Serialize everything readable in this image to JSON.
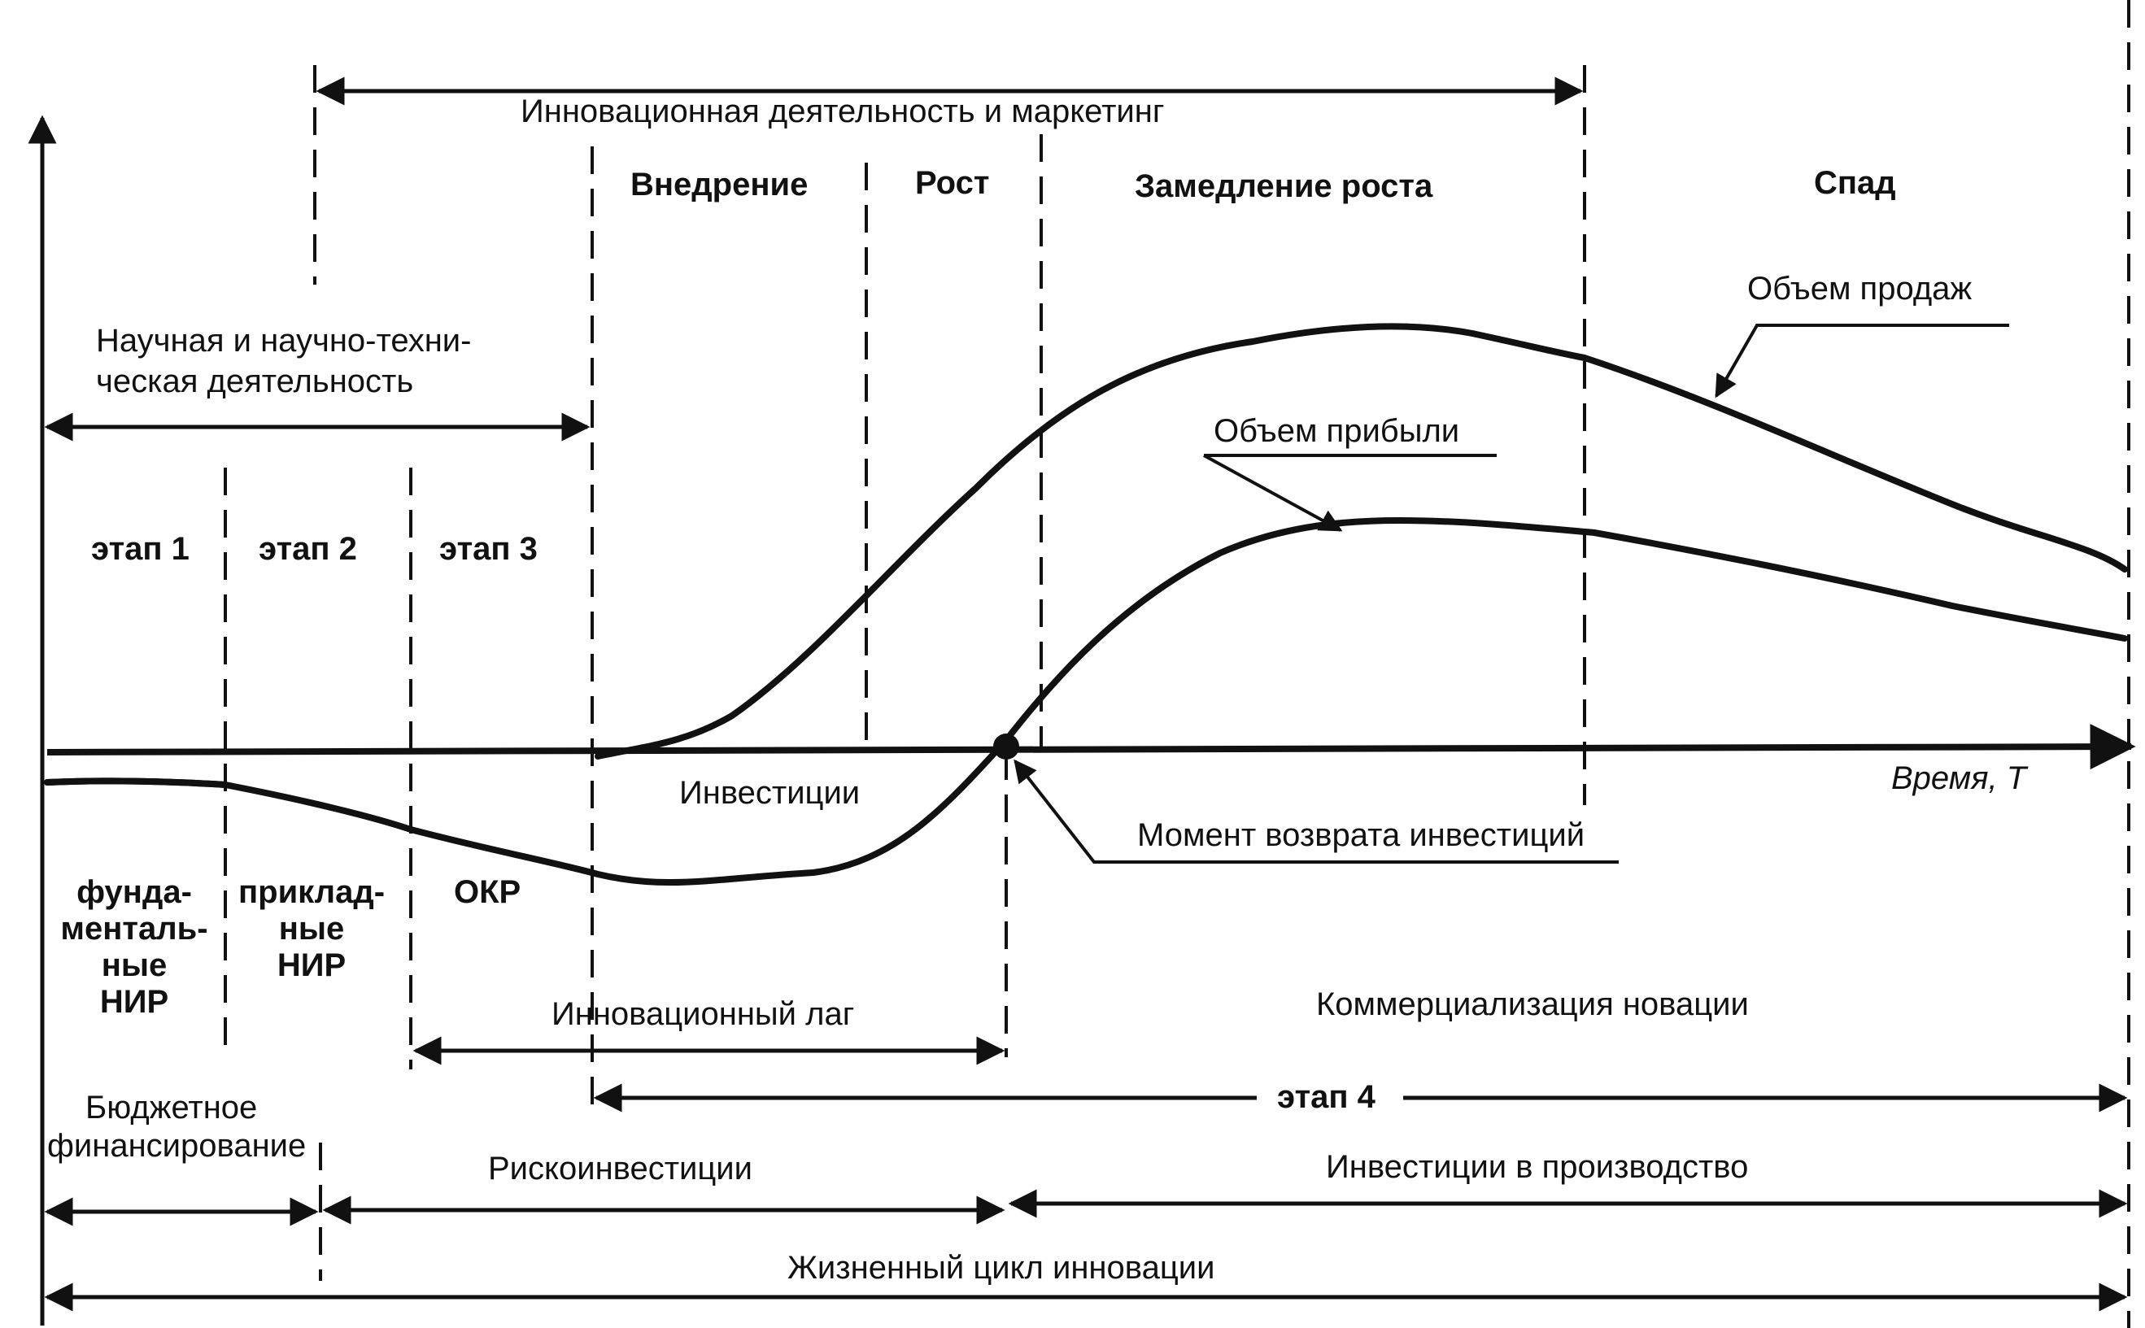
{
  "texts": {
    "innov_activity": "Инновационная деятельность и маркетинг",
    "phase_intro": "Внедрение",
    "phase_growth": "Рост",
    "phase_slowdown": "Замедление роста",
    "phase_decline": "Спад",
    "sci_line1": "Научная и научно-техни-",
    "sci_line2": "ческая деятельность",
    "sales_volume": "Объем продаж",
    "profit_volume": "Объем прибыли",
    "stage1": "этап 1",
    "stage2": "этап 2",
    "stage3": "этап 3",
    "time_axis": "Время, T",
    "investments": "Инвестиции",
    "payback_moment": "Момент возврата инвестиций",
    "fund_1": "фунда-",
    "fund_2": "менталь-",
    "fund_3": "ные",
    "fund_4": "НИР",
    "appl_1": "приклад-",
    "appl_2": "ные",
    "appl_3": "НИР",
    "okr": "ОКР",
    "innov_lag": "Инновационный лаг",
    "commercialization": "Коммерциализация новации",
    "stage4": "этап 4",
    "budget_1": "Бюджетное",
    "budget_2": "финансирование",
    "risk_invest": "Рискоинвестиции",
    "prod_invest": "Инвестиции в производство",
    "life_cycle": "Жизненный цикл инновации"
  }
}
